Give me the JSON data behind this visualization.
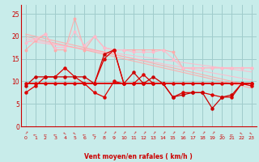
{
  "background_color": "#c8ecea",
  "grid_color": "#a0cccc",
  "xlabel": "Vent moyen/en rafales ( km/h )",
  "xlabel_color": "#cc0000",
  "tick_color": "#cc0000",
  "xlim_min": -0.5,
  "xlim_max": 23.5,
  "ylim_min": 0,
  "ylim_max": 27,
  "yticks": [
    0,
    5,
    10,
    15,
    20,
    25
  ],
  "xticks": [
    0,
    1,
    2,
    3,
    4,
    5,
    6,
    7,
    8,
    9,
    10,
    11,
    12,
    13,
    14,
    15,
    16,
    17,
    18,
    19,
    20,
    21,
    22,
    23
  ],
  "pink_trend1": [
    19.0,
    18.7,
    18.4,
    18.1,
    17.8,
    17.5,
    17.2,
    16.9,
    16.6,
    16.3,
    16.0,
    15.7,
    15.4,
    15.1,
    14.8,
    14.5,
    14.2,
    13.9,
    13.6,
    13.3,
    13.0,
    12.7,
    12.4,
    12.1
  ],
  "pink_trend2": [
    19.5,
    19.1,
    18.7,
    18.3,
    17.9,
    17.5,
    17.1,
    16.7,
    16.3,
    15.9,
    15.5,
    15.1,
    14.7,
    14.3,
    13.9,
    13.5,
    13.1,
    12.7,
    12.3,
    11.9,
    11.5,
    11.1,
    10.7,
    10.3
  ],
  "pink_trend3": [
    20.0,
    19.5,
    19.0,
    18.5,
    18.0,
    17.5,
    17.0,
    16.5,
    16.0,
    15.5,
    15.0,
    14.5,
    14.0,
    13.5,
    13.0,
    12.5,
    12.0,
    11.5,
    11.0,
    10.5,
    10.0,
    9.5,
    9.0,
    8.5
  ],
  "pink_trend4": [
    20.5,
    20.0,
    19.5,
    19.0,
    18.5,
    18.0,
    17.5,
    17.0,
    16.5,
    16.0,
    15.5,
    15.0,
    14.5,
    14.0,
    13.5,
    13.0,
    12.5,
    12.0,
    11.5,
    11.0,
    10.5,
    10.0,
    9.5,
    9.0
  ],
  "pink_wavy1": [
    17.0,
    19.0,
    20.5,
    17.0,
    17.0,
    24.0,
    17.0,
    20.0,
    17.5,
    17.0,
    17.0,
    17.0,
    17.0,
    17.0,
    17.0,
    16.5,
    13.0,
    13.0,
    13.0,
    13.0,
    13.0,
    13.0,
    13.0,
    13.0
  ],
  "pink_wavy2": [
    18.5,
    19.5,
    20.5,
    17.5,
    17.5,
    21.0,
    18.0,
    20.0,
    17.5,
    17.0,
    17.0,
    16.5,
    16.5,
    16.5,
    17.0,
    15.0,
    13.0,
    13.0,
    13.0,
    13.0,
    13.0,
    13.0,
    13.0,
    13.0
  ],
  "line_flat": [
    9.5,
    9.5,
    9.5,
    9.5,
    9.5,
    9.5,
    9.5,
    9.5,
    9.5,
    9.5,
    9.5,
    9.5,
    9.5,
    9.5,
    9.5,
    9.5,
    9.5,
    9.5,
    9.5,
    9.5,
    9.5,
    9.5,
    9.5,
    9.5
  ],
  "line_red1": [
    7.5,
    9.0,
    11.0,
    11.0,
    13.0,
    11.0,
    9.5,
    7.5,
    6.5,
    10.0,
    9.5,
    9.5,
    11.5,
    9.5,
    9.5,
    6.5,
    7.5,
    7.5,
    7.5,
    7.0,
    6.5,
    6.5,
    9.5,
    9.0
  ],
  "line_red2": [
    9.0,
    11.0,
    11.0,
    11.0,
    11.0,
    11.0,
    11.0,
    9.5,
    16.0,
    17.0,
    9.5,
    12.0,
    9.5,
    11.0,
    9.5,
    6.5,
    7.0,
    7.5,
    7.5,
    4.0,
    6.5,
    7.0,
    9.5,
    9.5
  ],
  "line_red3": [
    9.5,
    9.5,
    9.5,
    9.5,
    9.5,
    9.5,
    9.5,
    9.5,
    15.0,
    17.0,
    9.5,
    9.5,
    9.5,
    9.5,
    9.5,
    9.5,
    9.5,
    9.5,
    9.5,
    9.5,
    9.5,
    9.5,
    9.5,
    9.5
  ],
  "wind_arrow_angles": [
    -45,
    90,
    90,
    90,
    45,
    45,
    90,
    90,
    -45,
    -45,
    -45,
    -45,
    -45,
    -45,
    -45,
    -45,
    -45,
    -45,
    -45,
    -45,
    90,
    90,
    45,
    45
  ]
}
